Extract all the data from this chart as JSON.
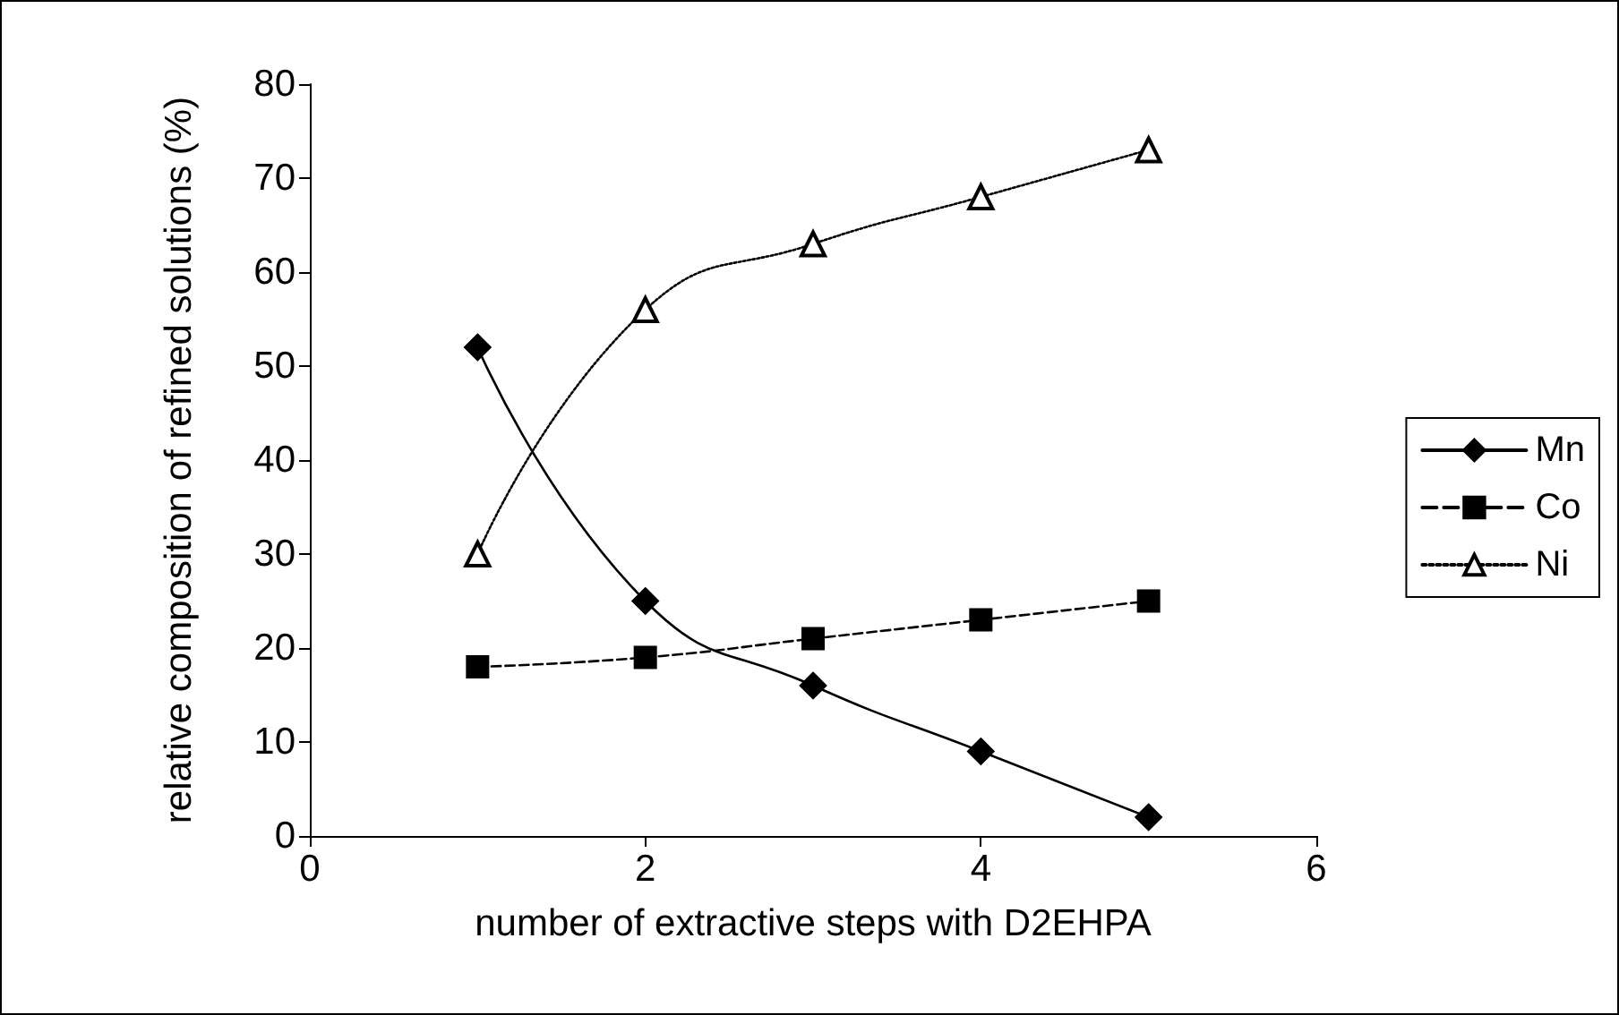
{
  "chart_data": {
    "type": "line",
    "xlabel": "number of extractive steps with D2EHPA",
    "ylabel": "relative composition of refined solutions (%)",
    "x": [
      1,
      2,
      3,
      4,
      5
    ],
    "xlim": [
      0,
      6
    ],
    "xticks": [
      0,
      2,
      4,
      6
    ],
    "ylim": [
      0,
      80
    ],
    "yticks": [
      0,
      10,
      20,
      30,
      40,
      50,
      60,
      70,
      80
    ],
    "grid": false,
    "legend": "right",
    "series": [
      {
        "name": "Mn",
        "color": "#000000",
        "values": [
          52,
          25,
          16,
          9,
          2
        ],
        "marker": "diamond",
        "line_style": "solid"
      },
      {
        "name": "Co",
        "color": "#000000",
        "values": [
          18,
          19,
          21,
          23,
          25
        ],
        "marker": "square",
        "line_style": "dashed"
      },
      {
        "name": "Ni",
        "color": "#000000",
        "values": [
          30,
          56,
          63,
          68,
          73
        ],
        "marker": "triangle",
        "line_style": "dotted"
      }
    ]
  }
}
